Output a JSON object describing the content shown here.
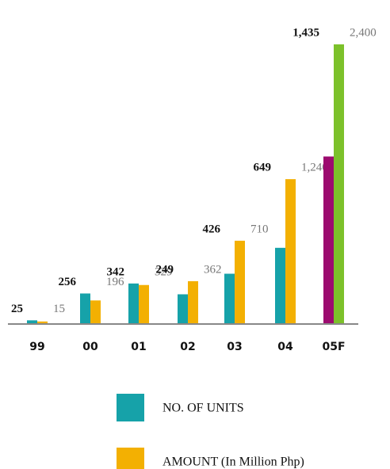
{
  "chart_data": {
    "type": "bar",
    "categories": [
      "99",
      "00",
      "01",
      "02",
      "03",
      "04",
      "05F"
    ],
    "series": [
      {
        "name": "NO. OF UNITS",
        "color": "#16a2a9",
        "point_colors": [
          "#16a2a9",
          "#16a2a9",
          "#16a2a9",
          "#16a2a9",
          "#16a2a9",
          "#16a2a9",
          "#9c0b6f"
        ],
        "values": [
          25,
          256,
          342,
          249,
          426,
          649,
          1435
        ],
        "value_labels": [
          "25",
          "256",
          "342",
          "249",
          "426",
          "649",
          "1,435"
        ]
      },
      {
        "name": "AMOUNT (In Million Php)",
        "color": "#f3b002",
        "point_colors": [
          "#f3b002",
          "#f3b002",
          "#f3b002",
          "#f3b002",
          "#f3b002",
          "#f3b002",
          "#7cc12a"
        ],
        "values": [
          15,
          196,
          329,
          362,
          710,
          1240,
          2400
        ],
        "value_labels": [
          "15",
          "196",
          "329",
          "362",
          "710",
          "1,240",
          "2,400"
        ]
      }
    ]
  }
}
